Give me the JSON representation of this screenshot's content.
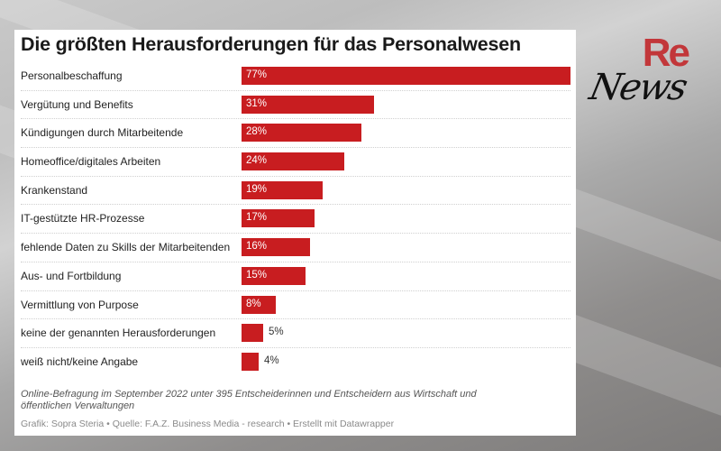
{
  "logo": {
    "re": "Re",
    "news": "News",
    "re_color": "#c2373a"
  },
  "chart_data": {
    "type": "bar",
    "orientation": "horizontal",
    "title": "Die größten Herausforderungen für das Personalwesen",
    "categories": [
      "Personalbeschaffung",
      "Vergütung und Benefits",
      "Kündigungen durch Mitarbeitende",
      "Homeoffice/digitales Arbeiten",
      "Krankenstand",
      "IT-gestützte HR-Prozesse",
      "fehlende Daten zu Skills der Mitarbeitenden",
      "Aus- und Fortbildung",
      "Vermittlung von Purpose",
      "keine der genannten Herausforderungen",
      "weiß nicht/keine Angabe"
    ],
    "values": [
      77,
      31,
      28,
      24,
      19,
      17,
      16,
      15,
      8,
      5,
      4
    ],
    "value_labels": [
      "77%",
      "31%",
      "28%",
      "24%",
      "19%",
      "17%",
      "16%",
      "15%",
      "8%",
      "5%",
      "4%"
    ],
    "unit": "%",
    "xlim": [
      0,
      77
    ],
    "bar_color": "#c81d20",
    "grid": false,
    "xlabel": "",
    "ylabel": ""
  },
  "notes": "Online-Befragung im September 2022 unter 395 Entscheiderinnen und Entscheidern aus Wirtschaft und öffentlichen Verwaltungen",
  "byline": "Grafik: Sopra Steria • Quelle: F.A.Z. Business Media - research • Erstellt mit Datawrapper"
}
